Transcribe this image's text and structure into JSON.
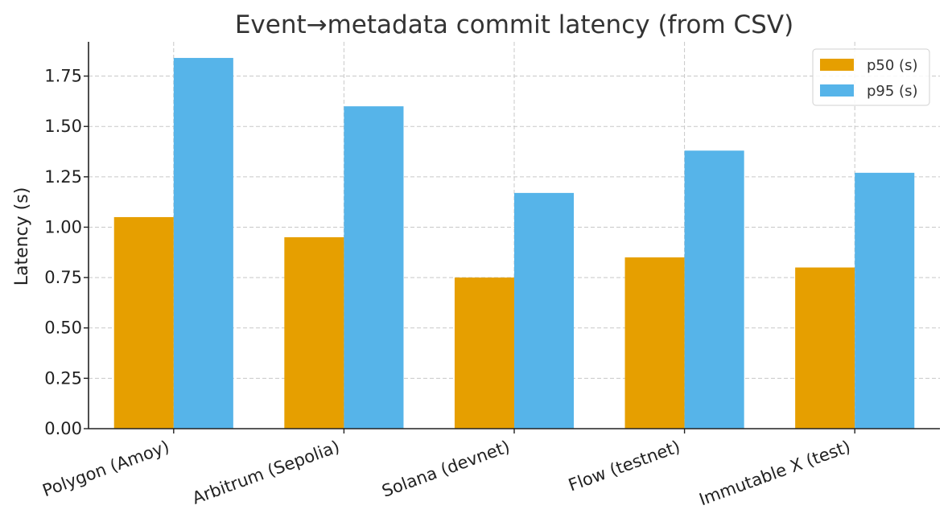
{
  "chart_data": {
    "type": "bar",
    "title": "Event→metadata commit latency (from CSV)",
    "xlabel": "",
    "ylabel": "Latency (s)",
    "categories": [
      "Polygon (Amoy)",
      "Arbitrum (Sepolia)",
      "Solana (devnet)",
      "Flow (testnet)",
      "Immutable X (test)"
    ],
    "series": [
      {
        "name": "p50 (s)",
        "color": "#E69F00",
        "values": [
          1.05,
          0.95,
          0.75,
          0.85,
          0.8
        ]
      },
      {
        "name": "p95 (s)",
        "color": "#56B4E9",
        "values": [
          1.84,
          1.6,
          1.17,
          1.38,
          1.27
        ]
      }
    ],
    "ylim": [
      0,
      1.92
    ],
    "yticks": [
      "0.00",
      "0.25",
      "0.50",
      "0.75",
      "1.00",
      "1.25",
      "1.50",
      "1.75"
    ],
    "grid": true,
    "legend_position": "top-right"
  }
}
